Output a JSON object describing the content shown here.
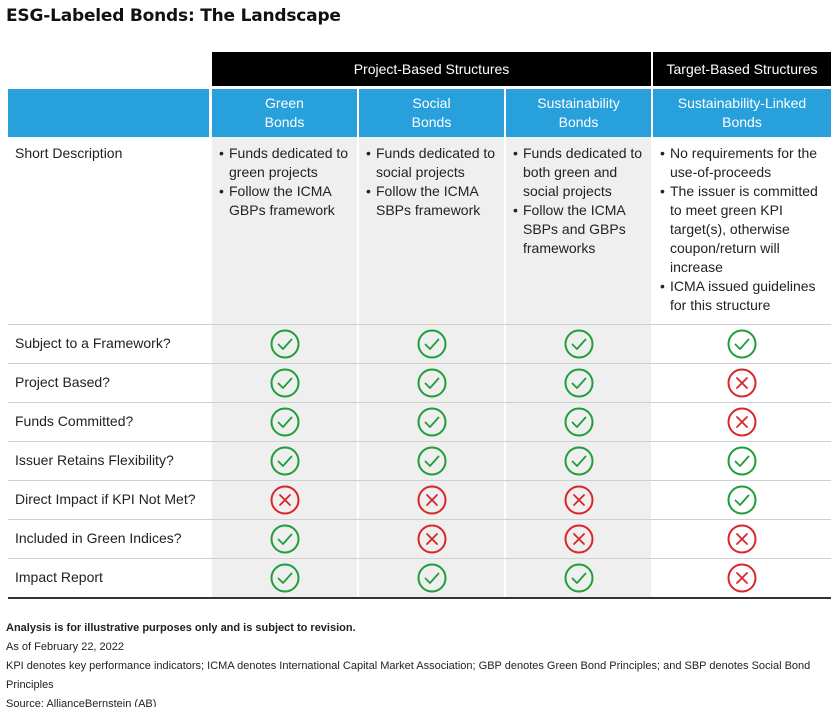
{
  "title": "ESG-Labeled Bonds: The Landscape",
  "groups": [
    {
      "label": "Project-Based Structures"
    },
    {
      "label": "Target-Based Structures"
    }
  ],
  "columns": [
    {
      "label": "Green\nBonds"
    },
    {
      "label": "Social\nBonds"
    },
    {
      "label": "Sustainability\nBonds"
    },
    {
      "label": "Sustainability-Linked\nBonds"
    }
  ],
  "description_row": {
    "label": "Short Description",
    "cells": [
      [
        "Funds dedicated to green projects",
        "Follow the ICMA GBPs framework"
      ],
      [
        "Funds dedicated to social projects",
        "Follow the ICMA SBPs framework"
      ],
      [
        "Funds dedicated to both green and social projects",
        "Follow the ICMA SBPs and GBPs frameworks"
      ],
      [
        "No requirements for the use-of-proceeds",
        "The issuer is committed to meet green KPI target(s), otherwise coupon/return will increase",
        "ICMA issued guidelines for this structure"
      ]
    ]
  },
  "rows": [
    {
      "label": "Subject to a Framework?",
      "values": [
        "yes",
        "yes",
        "yes",
        "yes"
      ]
    },
    {
      "label": "Project Based?",
      "values": [
        "yes",
        "yes",
        "yes",
        "no"
      ]
    },
    {
      "label": "Funds Committed?",
      "values": [
        "yes",
        "yes",
        "yes",
        "no"
      ]
    },
    {
      "label": "Issuer Retains Flexibility?",
      "values": [
        "yes",
        "yes",
        "yes",
        "yes"
      ]
    },
    {
      "label": "Direct Impact if KPI Not Met?",
      "values": [
        "no",
        "no",
        "no",
        "yes"
      ]
    },
    {
      "label": "Included in Green Indices?",
      "values": [
        "yes",
        "no",
        "no",
        "no"
      ]
    },
    {
      "label": "Impact Report",
      "values": [
        "yes",
        "yes",
        "yes",
        "no"
      ]
    }
  ],
  "icons": {
    "yes": "check-circle-icon",
    "no": "x-circle-icon"
  },
  "colors": {
    "header_black": "#000000",
    "header_blue": "#27a0dc",
    "check_green": "#1f9e3a",
    "cross_red": "#d9262b",
    "shade": "#efefef"
  },
  "notes": {
    "disclaimer": "Analysis is for illustrative purposes only and is subject to revision.",
    "date": "As of February 22, 2022",
    "definitions": "KPI denotes key performance indicators; ICMA denotes International Capital Market Association; GBP denotes Green Bond Principles; and SBP denotes Social Bond Principles",
    "source": "Source: AllianceBernstein (AB)"
  }
}
